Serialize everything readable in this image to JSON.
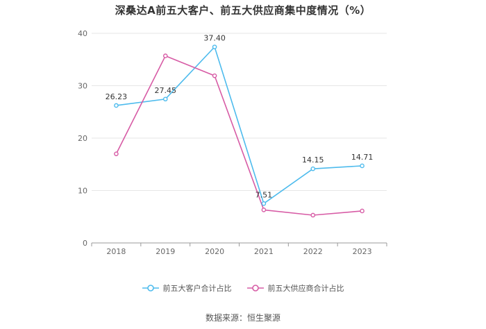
{
  "chart_data": {
    "type": "line",
    "title": "深桑达A前五大客户、前五大供应商集中度情况（%）",
    "x": [
      "2018",
      "2019",
      "2020",
      "2021",
      "2022",
      "2023"
    ],
    "ylim": [
      0,
      40
    ],
    "yticks": [
      "0",
      "10",
      "20",
      "30",
      "40"
    ],
    "grid": true,
    "legend_position": "bottom",
    "series": [
      {
        "name": "前五大客户合计占比",
        "color": "#4dbbed",
        "values": [
          26.23,
          27.45,
          37.4,
          7.51,
          14.15,
          14.71
        ],
        "labels": [
          "26.23",
          "27.45",
          "37.40",
          "7.51",
          "14.15",
          "14.71"
        ]
      },
      {
        "name": "前五大供应商合计占比",
        "color": "#d75ba5",
        "values": [
          17.0,
          35.7,
          31.9,
          6.3,
          5.3,
          6.1
        ],
        "labels": []
      }
    ],
    "source": "数据来源：恒生聚源"
  }
}
